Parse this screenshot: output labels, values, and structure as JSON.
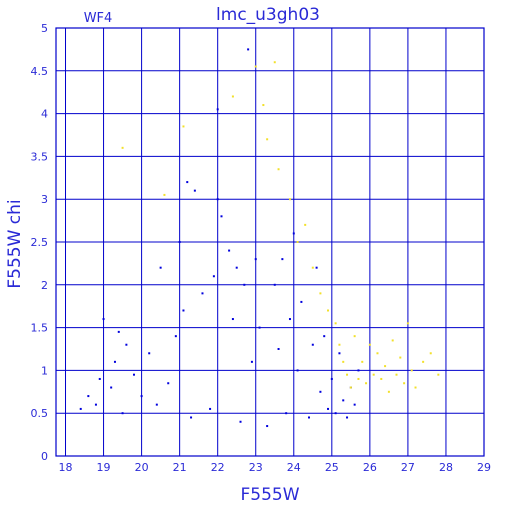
{
  "chart_data": {
    "type": "scatter",
    "title": "lmc_u3gh03",
    "panel_label": "WF4",
    "xlabel": "F555W",
    "ylabel": "F555W  chi",
    "xlim": [
      17.75,
      29
    ],
    "ylim": [
      0,
      5
    ],
    "xticks": [
      "18",
      "19",
      "20",
      "21",
      "22",
      "23",
      "24",
      "25",
      "26",
      "27",
      "28",
      "29"
    ],
    "yticks": [
      "0",
      "0.5",
      "1",
      "1.5",
      "2",
      "2.5",
      "3",
      "3.5",
      "4",
      "4.5",
      "5"
    ],
    "grid": true,
    "colors": {
      "axes": "#0000cc",
      "text": "#2a2ad6",
      "series_primary": "#0000dd",
      "series_secondary": "#f2e02a"
    },
    "series": [
      {
        "color": "#0000dd",
        "points": [
          [
            18.4,
            0.55
          ],
          [
            18.6,
            0.7
          ],
          [
            18.8,
            0.6
          ],
          [
            18.9,
            0.9
          ],
          [
            19.0,
            1.6
          ],
          [
            19.2,
            0.8
          ],
          [
            19.3,
            1.1
          ],
          [
            19.4,
            1.45
          ],
          [
            19.5,
            0.5
          ],
          [
            19.6,
            1.3
          ],
          [
            19.8,
            0.95
          ],
          [
            20.0,
            0.7
          ],
          [
            20.2,
            1.2
          ],
          [
            20.4,
            0.6
          ],
          [
            20.5,
            2.2
          ],
          [
            20.7,
            0.85
          ],
          [
            20.9,
            1.4
          ],
          [
            21.0,
            2.5
          ],
          [
            21.1,
            1.7
          ],
          [
            21.2,
            3.2
          ],
          [
            21.3,
            0.45
          ],
          [
            21.4,
            3.1
          ],
          [
            21.6,
            1.9
          ],
          [
            21.8,
            0.55
          ],
          [
            21.9,
            2.1
          ],
          [
            22.0,
            3.0
          ],
          [
            22.0,
            4.05
          ],
          [
            22.1,
            2.8
          ],
          [
            22.3,
            2.4
          ],
          [
            22.4,
            1.6
          ],
          [
            22.5,
            2.2
          ],
          [
            22.6,
            0.4
          ],
          [
            22.7,
            2.0
          ],
          [
            22.8,
            4.75
          ],
          [
            22.9,
            1.1
          ],
          [
            23.0,
            2.3
          ],
          [
            23.1,
            1.5
          ],
          [
            23.3,
            0.35
          ],
          [
            23.5,
            2.0
          ],
          [
            23.6,
            1.25
          ],
          [
            23.7,
            2.3
          ],
          [
            23.8,
            0.5
          ],
          [
            23.9,
            1.6
          ],
          [
            24.0,
            2.6
          ],
          [
            24.1,
            1.0
          ],
          [
            24.2,
            1.8
          ],
          [
            24.4,
            0.45
          ],
          [
            24.5,
            1.3
          ],
          [
            24.6,
            2.2
          ],
          [
            24.7,
            0.75
          ],
          [
            24.8,
            1.4
          ],
          [
            24.9,
            0.55
          ],
          [
            25.0,
            0.9
          ],
          [
            25.1,
            0.5
          ],
          [
            25.2,
            1.2
          ],
          [
            25.3,
            0.65
          ],
          [
            25.4,
            0.45
          ],
          [
            25.5,
            0.8
          ],
          [
            25.6,
            0.6
          ],
          [
            25.7,
            1.0
          ]
        ]
      },
      {
        "color": "#f2e02a",
        "points": [
          [
            19.5,
            3.6
          ],
          [
            20.6,
            3.05
          ],
          [
            21.1,
            3.85
          ],
          [
            22.4,
            4.2
          ],
          [
            23.0,
            4.55
          ],
          [
            23.2,
            4.1
          ],
          [
            23.3,
            3.7
          ],
          [
            23.5,
            4.6
          ],
          [
            23.6,
            3.35
          ],
          [
            23.9,
            3.0
          ],
          [
            24.1,
            2.5
          ],
          [
            24.3,
            2.7
          ],
          [
            24.5,
            2.2
          ],
          [
            24.7,
            1.9
          ],
          [
            24.9,
            1.7
          ],
          [
            25.1,
            1.55
          ],
          [
            25.2,
            1.3
          ],
          [
            25.3,
            1.1
          ],
          [
            25.4,
            0.95
          ],
          [
            25.5,
            0.8
          ],
          [
            25.6,
            1.4
          ],
          [
            25.7,
            0.9
          ],
          [
            25.8,
            1.1
          ],
          [
            25.9,
            0.85
          ],
          [
            26.0,
            1.3
          ],
          [
            26.1,
            0.95
          ],
          [
            26.2,
            1.2
          ],
          [
            26.3,
            0.9
          ],
          [
            26.4,
            1.05
          ],
          [
            26.5,
            0.75
          ],
          [
            26.6,
            1.35
          ],
          [
            26.7,
            0.95
          ],
          [
            26.8,
            1.15
          ],
          [
            26.9,
            0.85
          ],
          [
            27.0,
            1.55
          ],
          [
            27.1,
            1.0
          ],
          [
            27.2,
            0.8
          ],
          [
            27.4,
            1.1
          ],
          [
            27.6,
            1.2
          ],
          [
            27.8,
            0.95
          ]
        ]
      }
    ]
  }
}
